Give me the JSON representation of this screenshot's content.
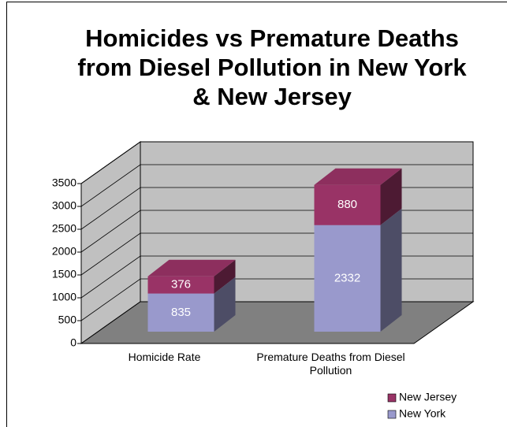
{
  "chart_data": {
    "type": "bar3d_stacked",
    "title": "Homicides vs Premature Deaths from Diesel Pollution in New York & New Jersey",
    "categories": [
      "Homicide Rate",
      "Premature Deaths from Diesel Pollution"
    ],
    "series": [
      {
        "name": "New York",
        "color": "#9999cc",
        "values": [
          835,
          2332
        ]
      },
      {
        "name": "New Jersey",
        "color": "#993366",
        "values": [
          376,
          880
        ]
      }
    ],
    "ylim": [
      0,
      3500
    ],
    "yticks": [
      0,
      500,
      1000,
      1500,
      2000,
      2500,
      3000,
      3500
    ],
    "grid": true,
    "legend": "bottom-right"
  }
}
